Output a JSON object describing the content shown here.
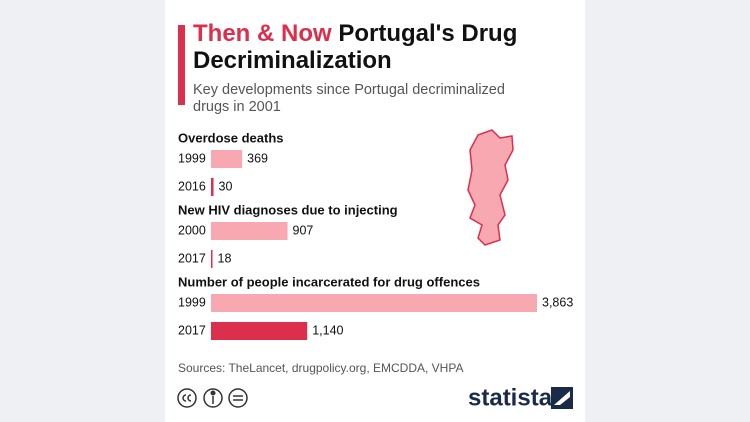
{
  "title_highlight": "Then & Now",
  "title": "Portugal's Drug Decriminalization",
  "subtitle": "Key developments since Portugal decriminalized drugs in 2001",
  "source": "Sources: TheLancet, drugpolicy.org, EMCDDA, VHPA",
  "brand": "statista",
  "chart_data": [
    {
      "type": "bar",
      "orientation": "horizontal",
      "title": "Overdose deaths",
      "categories": [
        "1999",
        "2016"
      ],
      "values": [
        369,
        30
      ],
      "colors": [
        "#f7a8b1",
        "#dc2f4c"
      ]
    },
    {
      "type": "bar",
      "orientation": "horizontal",
      "title": "New HIV diagnoses due to injecting",
      "categories": [
        "2000",
        "2017"
      ],
      "values": [
        907,
        18
      ],
      "colors": [
        "#f7a8b1",
        "#dc2f4c"
      ]
    },
    {
      "type": "bar",
      "orientation": "horizontal",
      "title": "Number of people incarcerated for drug offences",
      "categories": [
        "1999",
        "2017"
      ],
      "values": [
        3863,
        1140
      ],
      "value_labels": [
        "3,863",
        "1,140"
      ],
      "colors": [
        "#f7a8b1",
        "#dc2f4c"
      ]
    }
  ]
}
